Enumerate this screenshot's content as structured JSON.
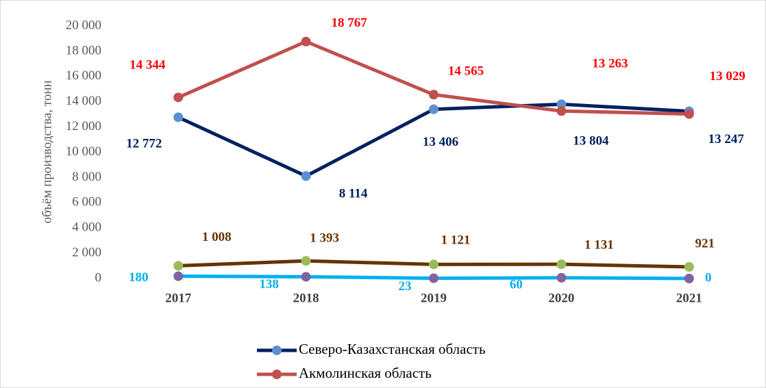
{
  "chart_data": {
    "type": "line",
    "y_label": "объём производства, тонн",
    "categories": [
      "2017",
      "2018",
      "2019",
      "2020",
      "2021"
    ],
    "ylim": [
      0,
      20000
    ],
    "yticks": [
      0,
      {
        "value": 2000,
        "label": "2 000"
      },
      {
        "value": 4000,
        "label": "4 000"
      },
      {
        "value": 6000,
        "label": "6 000"
      },
      {
        "value": 8000,
        "label": "8 000"
      },
      {
        "value": 10000,
        "label": "10 000"
      },
      {
        "value": 12000,
        "label": "12 000"
      },
      {
        "value": 14000,
        "label": "14 000"
      },
      {
        "value": 16000,
        "label": "16 000"
      },
      {
        "value": 18000,
        "label": "18 000"
      },
      {
        "value": 20000,
        "label": "20 000"
      }
    ],
    "grid": false,
    "legend": "bottom",
    "series": [
      {
        "name": "Северо-Казахстанская область",
        "color": "#002060",
        "marker_color": "#5b8fcf",
        "label_color": "#002060",
        "values": [
          12772,
          8114,
          13406,
          13804,
          13247
        ],
        "value_labels": [
          "12 772",
          "8 114",
          "13 406",
          "13 804",
          "13 247"
        ]
      },
      {
        "name": "Акмолинская область",
        "color": "#c0504d",
        "marker_color": "#c0504d",
        "label_color": "#ff0000",
        "values": [
          14344,
          18767,
          14565,
          13263,
          13029
        ],
        "value_labels": [
          "14 344",
          "18 767",
          "14 565",
          "13 263",
          "13 029"
        ]
      },
      {
        "color": "#663300",
        "marker_color": "#9bbb59",
        "label_color": "#663300",
        "values": [
          1008,
          1393,
          1121,
          1131,
          921
        ],
        "value_labels": [
          "1 008",
          "1 393",
          "1 121",
          "1 131",
          "921"
        ]
      },
      {
        "color": "#00b0f0",
        "marker_color": "#8064a2",
        "label_color": "#00b0f0",
        "values": [
          180,
          138,
          23,
          60,
          0
        ]
      }
    ]
  }
}
